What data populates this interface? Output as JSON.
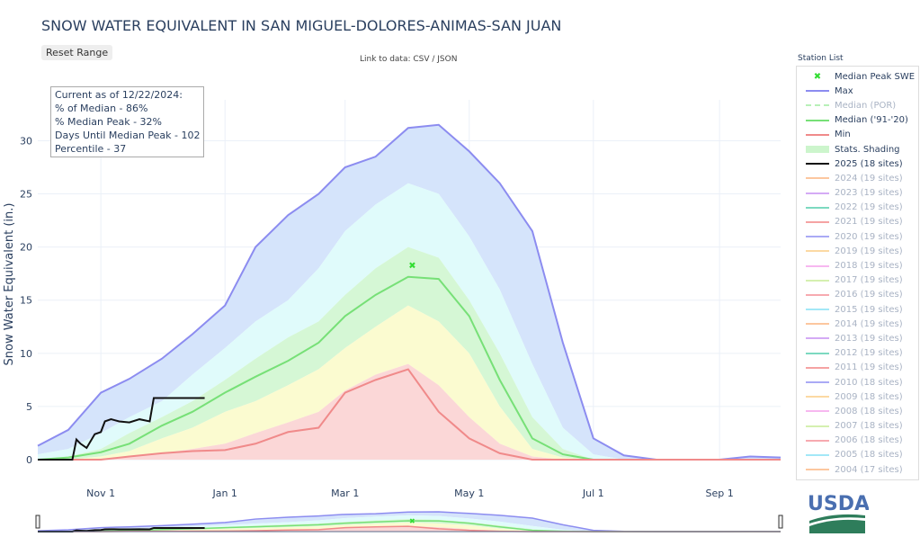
{
  "header": {
    "title": "SNOW WATER EQUIVALENT IN SAN MIGUEL-DOLORES-ANIMAS-SAN JUAN",
    "reset": "Reset Range",
    "link": "Link to data: CSV / JSON"
  },
  "info": [
    "Current as of 12/22/2024:",
    "% of Median - 86%",
    "% Median Peak - 32%",
    "Days Until Median Peak - 102",
    "Percentile - 37"
  ],
  "legend": {
    "title": "Station List",
    "items": [
      {
        "label": "Median Peak SWE",
        "color": "#33dd33",
        "type": "marker",
        "on": true
      },
      {
        "label": "Max",
        "color": "#8c8cf0",
        "on": true
      },
      {
        "label": "Median (POR)",
        "color": "#b8f0b8",
        "type": "dash",
        "on": false
      },
      {
        "label": "Median ('91-'20)",
        "color": "#77e077",
        "on": true
      },
      {
        "label": "Min",
        "color": "#f08a8a",
        "on": true
      },
      {
        "label": "Stats. Shading",
        "color": "#ccf5cc",
        "type": "band",
        "on": true
      },
      {
        "label": "2025 (18 sites)",
        "color": "#111111",
        "on": true
      },
      {
        "label": "2024 (19 sites)",
        "color": "#fcc79f",
        "on": false
      },
      {
        "label": "2023 (19 sites)",
        "color": "#d4aaf5",
        "on": false
      },
      {
        "label": "2022 (19 sites)",
        "color": "#7cd9c0",
        "on": false
      },
      {
        "label": "2021 (19 sites)",
        "color": "#f5a3a3",
        "on": false
      },
      {
        "label": "2020 (19 sites)",
        "color": "#aaaaf5",
        "on": false
      },
      {
        "label": "2019 (19 sites)",
        "color": "#fcd9a3",
        "on": false
      },
      {
        "label": "2018 (19 sites)",
        "color": "#f7b8f0",
        "on": false
      },
      {
        "label": "2017 (19 sites)",
        "color": "#d5f0b0",
        "on": false
      },
      {
        "label": "2016 (19 sites)",
        "color": "#f7aab0",
        "on": false
      },
      {
        "label": "2015 (19 sites)",
        "color": "#a3e8f7",
        "on": false
      },
      {
        "label": "2014 (19 sites)",
        "color": "#fcc79f",
        "on": false
      },
      {
        "label": "2013 (19 sites)",
        "color": "#d4aaf5",
        "on": false
      },
      {
        "label": "2012 (19 sites)",
        "color": "#7cd9c0",
        "on": false
      },
      {
        "label": "2011 (19 sites)",
        "color": "#f5a3a3",
        "on": false
      },
      {
        "label": "2010 (18 sites)",
        "color": "#aaaaf5",
        "on": false
      },
      {
        "label": "2009 (18 sites)",
        "color": "#fcd9a3",
        "on": false
      },
      {
        "label": "2008 (18 sites)",
        "color": "#f7b8f0",
        "on": false
      },
      {
        "label": "2007 (18 sites)",
        "color": "#d5f0b0",
        "on": false
      },
      {
        "label": "2006 (18 sites)",
        "color": "#f7aab0",
        "on": false
      },
      {
        "label": "2005 (18 sites)",
        "color": "#a3e8f7",
        "on": false
      },
      {
        "label": "2004 (17 sites)",
        "color": "#fcc79f",
        "on": false
      }
    ]
  },
  "logo": "USDA",
  "chart_data": {
    "type": "area",
    "title": "SNOW WATER EQUIVALENT IN SAN MIGUEL-DOLORES-ANIMAS-SAN JUAN",
    "xlabel": "",
    "ylabel": "Snow Water Equivalent (in.)",
    "x_unit": "days since Oct 1",
    "xlim": [
      0,
      365
    ],
    "ylim": [
      0,
      33
    ],
    "xticks": [
      {
        "day": 31,
        "label": "Nov 1"
      },
      {
        "day": 92,
        "label": "Jan 1"
      },
      {
        "day": 151,
        "label": "Mar 1"
      },
      {
        "day": 212,
        "label": "May 1"
      },
      {
        "day": 273,
        "label": "Jul 1"
      },
      {
        "day": 335,
        "label": "Sep 1"
      }
    ],
    "yticks": [
      0,
      5,
      10,
      15,
      20,
      25,
      30
    ],
    "days": [
      0,
      15,
      31,
      45,
      61,
      76,
      92,
      107,
      123,
      138,
      151,
      166,
      182,
      197,
      212,
      227,
      243,
      258,
      273,
      288,
      304,
      319,
      335,
      350,
      365
    ],
    "max": [
      1.3,
      2.8,
      6.3,
      7.6,
      9.5,
      11.8,
      14.5,
      20,
      23,
      25,
      27.5,
      28.5,
      31.2,
      31.5,
      29,
      26,
      21.5,
      11,
      2,
      0.4,
      0,
      0,
      0,
      0.3,
      0.2
    ],
    "p90": [
      0.5,
      1,
      2.5,
      4,
      5.5,
      8,
      10.5,
      13,
      15,
      18,
      21.5,
      24,
      26,
      25,
      21,
      16,
      9,
      3,
      0.5,
      0,
      0,
      0,
      0,
      0,
      0
    ],
    "p70": [
      0,
      0.3,
      1,
      2.5,
      4,
      5.5,
      7.5,
      9.5,
      11.5,
      13,
      15.5,
      18,
      20,
      19,
      15,
      10,
      4,
      1,
      0,
      0,
      0,
      0,
      0,
      0,
      0
    ],
    "median": [
      0,
      0.2,
      0.7,
      1.5,
      3.2,
      4.5,
      6.3,
      7.8,
      9.3,
      11,
      13.5,
      15.5,
      17.2,
      17,
      13.5,
      7.5,
      2,
      0.5,
      0,
      0,
      0,
      0,
      0,
      0,
      0
    ],
    "p30": [
      0,
      0,
      0.3,
      0.8,
      2,
      3,
      4.5,
      5.5,
      7,
      8.5,
      10.5,
      12.5,
      14.5,
      13,
      10,
      5,
      1,
      0.2,
      0,
      0,
      0,
      0,
      0,
      0,
      0
    ],
    "p10": [
      0,
      0,
      0.1,
      0.3,
      0.6,
      1,
      1.5,
      2.5,
      3.5,
      4.5,
      6.5,
      8,
      9,
      7,
      4,
      1.5,
      0.3,
      0,
      0,
      0,
      0,
      0,
      0,
      0,
      0
    ],
    "min": [
      0,
      0,
      0,
      0.3,
      0.6,
      0.8,
      0.9,
      1.5,
      2.6,
      3,
      6.3,
      7.5,
      8.5,
      4.5,
      2,
      0.6,
      0,
      0,
      0,
      0,
      0,
      0,
      0,
      0,
      0
    ],
    "wy2025": {
      "days": [
        0,
        17,
        19,
        21,
        24,
        28,
        31,
        33,
        36,
        40,
        45,
        50,
        55,
        57,
        60,
        70,
        82
      ],
      "values": [
        0,
        0,
        1.9,
        1.5,
        1.1,
        2.4,
        2.6,
        3.6,
        3.8,
        3.6,
        3.5,
        3.8,
        3.6,
        5.8,
        5.8,
        5.8,
        5.8
      ]
    },
    "median_peak": {
      "day": 184,
      "value": 18.3
    },
    "legend_position": "right"
  }
}
